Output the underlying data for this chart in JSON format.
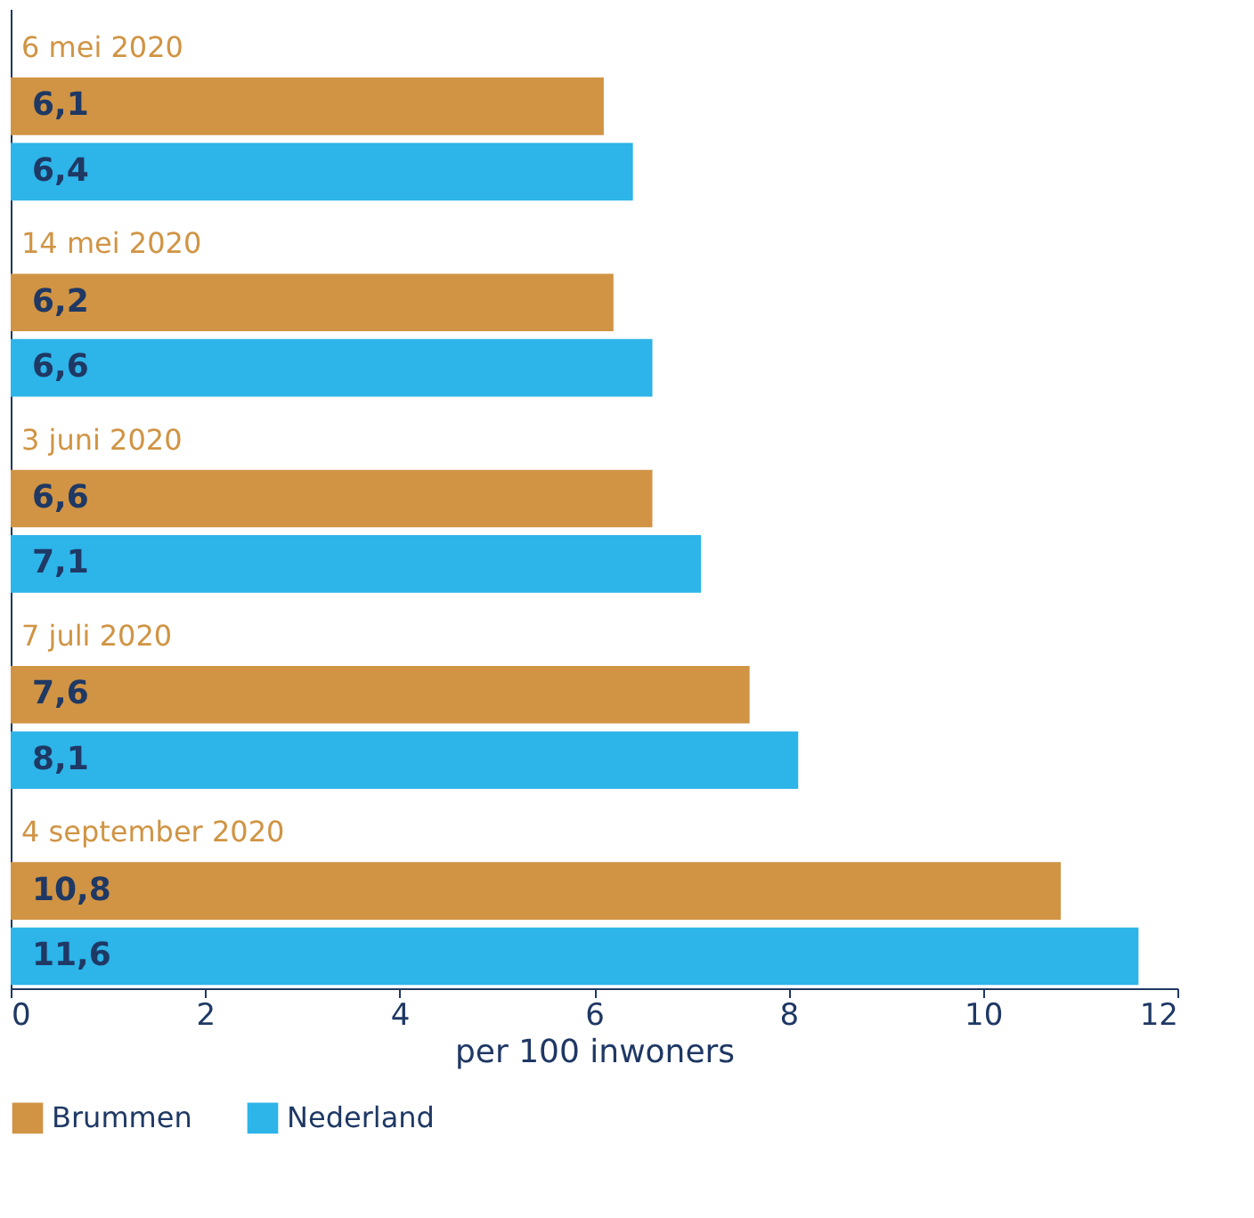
{
  "chart_data": {
    "type": "bar",
    "orientation": "horizontal",
    "categories": [
      "6 mei 2020",
      "14 mei 2020",
      "3 juni 2020",
      "7 juli 2020",
      "4 september 2020"
    ],
    "series": [
      {
        "name": "Brummen",
        "color": "#d09444",
        "values": [
          6.1,
          6.2,
          6.6,
          7.6,
          10.8
        ],
        "value_labels": [
          "6,1",
          "6,2",
          "6,6",
          "7,6",
          "10,8"
        ]
      },
      {
        "name": "Nederland",
        "color": "#2db4e8",
        "values": [
          6.4,
          6.6,
          7.1,
          8.1,
          11.6
        ],
        "value_labels": [
          "6,4",
          "6,6",
          "7,1",
          "8,1",
          "11,6"
        ]
      }
    ],
    "xlabel": "per 100 inwoners",
    "xlim": [
      0,
      12
    ],
    "xticks": [
      0,
      2,
      4,
      6,
      8,
      10,
      12
    ],
    "grid": false,
    "legend": "bottom"
  }
}
